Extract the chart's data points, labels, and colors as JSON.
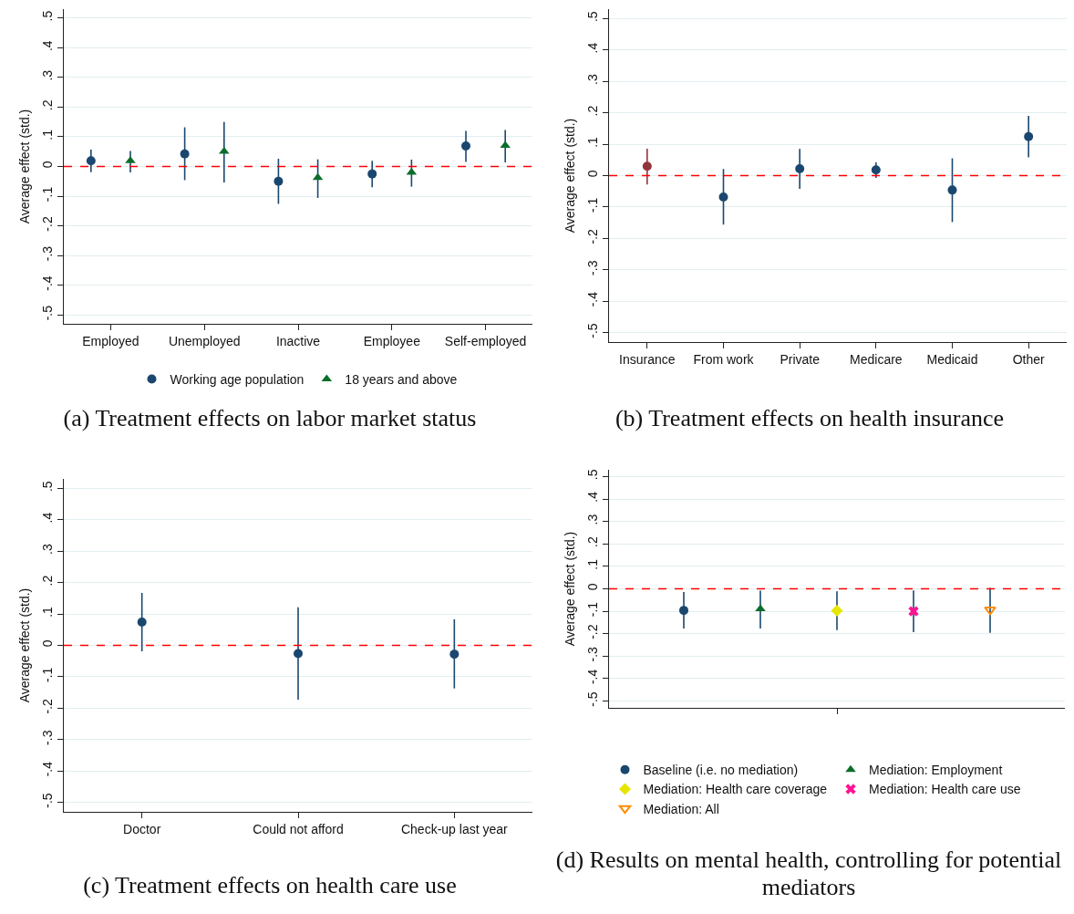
{
  "chart_data": [
    {
      "type": "scatter",
      "title": "(a) Treatment effects on labor market status",
      "ylabel": "Average effect (std.)",
      "categories": [
        "Employed",
        "Unemployed",
        "Inactive",
        "Employee",
        "Self-employed"
      ],
      "series": [
        {
          "name": "Working age population",
          "color": "#1a476f",
          "marker": "circle",
          "values": [
            0.019,
            0.042,
            -0.05,
            -0.025,
            0.069
          ],
          "errors": [
            [
              -0.019,
              0.057
            ],
            [
              -0.046,
              0.132
            ],
            [
              -0.126,
              0.026
            ],
            [
              -0.07,
              0.019
            ],
            [
              0.015,
              0.12
            ]
          ]
        },
        {
          "name": "18 years and above",
          "color": "#0a6e2a",
          "marker": "triangle",
          "values": [
            0.019,
            0.051,
            -0.038,
            -0.02,
            0.071
          ],
          "errors": [
            [
              -0.02,
              0.052
            ],
            [
              -0.054,
              0.15
            ],
            [
              -0.106,
              0.024
            ],
            [
              -0.068,
              0.023
            ],
            [
              0.014,
              0.123
            ]
          ]
        }
      ],
      "ylim": [
        -0.53,
        0.53
      ],
      "yticks": [
        {
          "value": -0.5,
          "label": "-.5"
        },
        {
          "value": -0.4,
          "label": "-.4"
        },
        {
          "value": -0.3,
          "label": "-.3"
        },
        {
          "value": -0.2,
          "label": "-.2"
        },
        {
          "value": -0.1,
          "label": "-.1"
        },
        {
          "value": 0,
          "label": "0"
        },
        {
          "value": 0.1,
          "label": ".1"
        },
        {
          "value": 0.2,
          "label": ".2"
        },
        {
          "value": 0.3,
          "label": ".3"
        },
        {
          "value": 0.4,
          "label": ".4"
        },
        {
          "value": 0.5,
          "label": ".5"
        }
      ],
      "grid": "y",
      "legend": "bottom",
      "ref_lines": [
        {
          "axis": "y",
          "value": 0,
          "color": "#ff0000",
          "line_style": "dashed"
        }
      ]
    },
    {
      "type": "scatter",
      "title": "(b) Treatment effects on health insurance",
      "ylabel": "Average effect (std.)",
      "categories": [
        "Insurance",
        "From work",
        "Private",
        "Medicare",
        "Medicaid",
        "Other"
      ],
      "values": [
        0.03,
        -0.068,
        0.022,
        0.018,
        -0.046,
        0.124
      ],
      "colors": [
        "#90353b",
        "#1a476f",
        "#1a476f",
        "#1a476f",
        "#1a476f",
        "#1a476f"
      ],
      "errors": [
        [
          -0.028,
          0.086
        ],
        [
          -0.156,
          0.021
        ],
        [
          -0.042,
          0.085
        ],
        [
          -0.007,
          0.042
        ],
        [
          -0.148,
          0.055
        ],
        [
          0.058,
          0.19
        ]
      ],
      "marker": "circle",
      "ylim": [
        -0.53,
        0.53
      ],
      "yticks": [
        {
          "value": -0.5,
          "label": "-.5"
        },
        {
          "value": -0.4,
          "label": "-.4"
        },
        {
          "value": -0.3,
          "label": "-.3"
        },
        {
          "value": -0.2,
          "label": "-.2"
        },
        {
          "value": -0.1,
          "label": "-.1"
        },
        {
          "value": 0,
          "label": "0"
        },
        {
          "value": 0.1,
          "label": ".1"
        },
        {
          "value": 0.2,
          "label": ".2"
        },
        {
          "value": 0.3,
          "label": ".3"
        },
        {
          "value": 0.4,
          "label": ".4"
        },
        {
          "value": 0.5,
          "label": ".5"
        }
      ],
      "grid": "y",
      "ref_lines": [
        {
          "axis": "y",
          "value": 0,
          "color": "#ff0000",
          "line_style": "dashed"
        }
      ]
    },
    {
      "type": "scatter",
      "title": "(c) Treatment effects on health care use",
      "ylabel": "Average effect (std.)",
      "categories": [
        "Doctor",
        "Could not afford",
        "Check-up last year"
      ],
      "values": [
        0.074,
        -0.026,
        -0.028
      ],
      "color": "#1a476f",
      "errors": [
        [
          -0.019,
          0.167
        ],
        [
          -0.173,
          0.121
        ],
        [
          -0.137,
          0.083
        ]
      ],
      "marker": "circle",
      "ylim": [
        -0.53,
        0.53
      ],
      "yticks": [
        {
          "value": -0.5,
          "label": "-.5"
        },
        {
          "value": -0.4,
          "label": "-.4"
        },
        {
          "value": -0.3,
          "label": "-.3"
        },
        {
          "value": -0.2,
          "label": "-.2"
        },
        {
          "value": -0.1,
          "label": "-.1"
        },
        {
          "value": 0,
          "label": "0"
        },
        {
          "value": 0.1,
          "label": ".1"
        },
        {
          "value": 0.2,
          "label": ".2"
        },
        {
          "value": 0.3,
          "label": ".3"
        },
        {
          "value": 0.4,
          "label": ".4"
        },
        {
          "value": 0.5,
          "label": ".5"
        }
      ],
      "grid": "y",
      "ref_lines": [
        {
          "axis": "y",
          "value": 0,
          "color": "#ff0000",
          "line_style": "dashed"
        }
      ]
    },
    {
      "type": "scatter",
      "title": "(d) Results on mental health, controlling for potential mediators",
      "ylabel": "Average effect (std.)",
      "categories": [
        null
      ],
      "series": [
        {
          "name": "Baseline (i.e. no mediation)",
          "color": "#1a476f",
          "marker": "circle",
          "values": [
            -0.096
          ],
          "errors": [
            [
              -0.177,
              -0.014
            ]
          ]
        },
        {
          "name": "Mediation: Employment",
          "color": "#0a6e2a",
          "marker": "triangle",
          "values": [
            -0.089
          ],
          "errors": [
            [
              -0.177,
              -0.008
            ]
          ]
        },
        {
          "name": "Mediation: Health care coverage",
          "color": "#e6e600",
          "marker": "diamond",
          "values": [
            -0.097
          ],
          "errors": [
            [
              -0.184,
              -0.011
            ]
          ]
        },
        {
          "name": "Mediation: Health care use",
          "color": "#ff1493",
          "marker": "cross",
          "values": [
            -0.1
          ],
          "errors": [
            [
              -0.193,
              -0.007
            ]
          ]
        },
        {
          "name": "Mediation: All",
          "color": "#ff8c00",
          "marker": "v",
          "values": [
            -0.093
          ],
          "errors": [
            [
              -0.196,
              0.004
            ]
          ]
        }
      ],
      "ylim": [
        -0.53,
        0.53
      ],
      "yticks": [
        {
          "value": -0.5,
          "label": "-.5"
        },
        {
          "value": -0.4,
          "label": "-.4"
        },
        {
          "value": -0.3,
          "label": "-.3"
        },
        {
          "value": -0.2,
          "label": "-.2"
        },
        {
          "value": -0.1,
          "label": "-.1"
        },
        {
          "value": 0,
          "label": "0"
        },
        {
          "value": 0.1,
          "label": ".1"
        },
        {
          "value": 0.2,
          "label": ".2"
        },
        {
          "value": 0.3,
          "label": ".3"
        },
        {
          "value": 0.4,
          "label": ".4"
        },
        {
          "value": 0.5,
          "label": ".5"
        }
      ],
      "grid": "y",
      "legend": "bottom",
      "ref_lines": [
        {
          "axis": "y",
          "value": 0,
          "color": "#ff0000",
          "line_style": "dashed"
        }
      ]
    }
  ]
}
